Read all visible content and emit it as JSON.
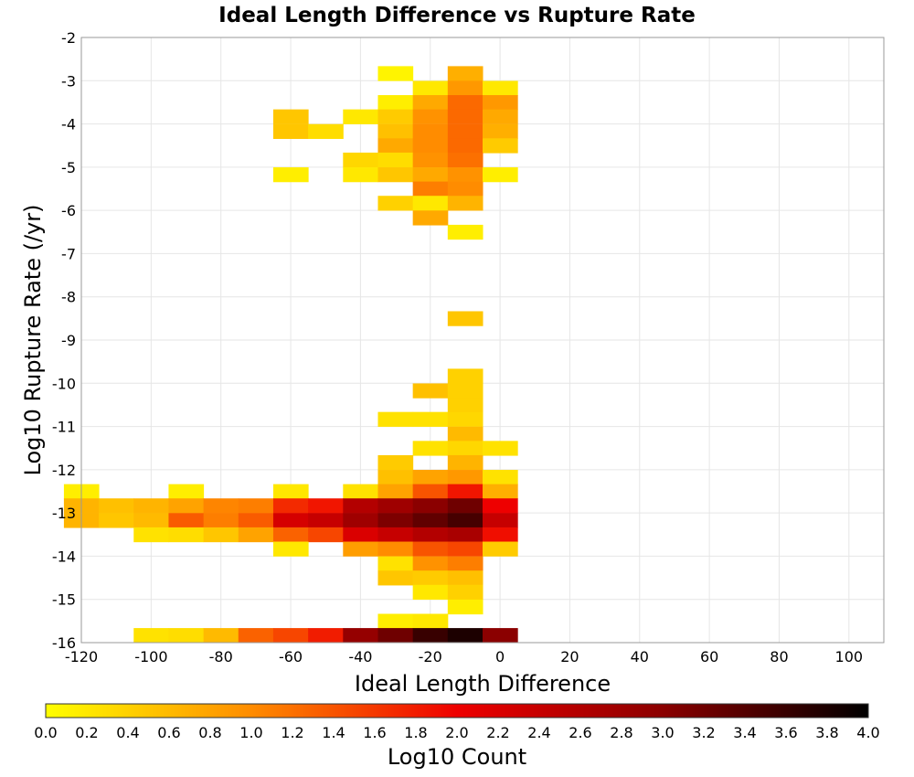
{
  "chart_data": {
    "type": "heatmap",
    "title": "Ideal Length Difference vs Rupture Rate",
    "xlabel": "Ideal Length Difference",
    "ylabel": "Log10 Rupture Rate (/yr)",
    "xlim": [
      -120,
      110
    ],
    "ylim": [
      -16,
      -2
    ],
    "xticks": [
      -120,
      -100,
      -80,
      -60,
      -40,
      -20,
      0,
      20,
      40,
      60,
      80,
      100
    ],
    "yticks": [
      -16,
      -15,
      -14,
      -13,
      -12,
      -11,
      -10,
      -9,
      -8,
      -7,
      -6,
      -5,
      -4,
      -3,
      -2
    ],
    "x_bin_width": 10,
    "y_bin_height": 0.333,
    "grid": true,
    "colorbar": {
      "label": "Log10 Count",
      "range": [
        0,
        4
      ],
      "ticks": [
        "0.0",
        "0.2",
        "0.4",
        "0.6",
        "0.8",
        "1.0",
        "1.2",
        "1.4",
        "1.6",
        "1.8",
        "2.0",
        "2.2",
        "2.4",
        "2.6",
        "2.8",
        "3.0",
        "3.2",
        "3.4",
        "3.6",
        "3.8",
        "4.0"
      ],
      "colors": [
        "#ffff00",
        "#ff8c00",
        "#ee0000",
        "#8b0000",
        "#000000"
      ]
    },
    "cells": [
      {
        "x": -30,
        "y": -2.83,
        "v": 0.1
      },
      {
        "x": -20,
        "y": -3.17,
        "v": 0.2
      },
      {
        "x": -10,
        "y": -2.83,
        "v": 0.7
      },
      {
        "x": -10,
        "y": -3.17,
        "v": 0.9
      },
      {
        "x": 0,
        "y": -3.17,
        "v": 0.2
      },
      {
        "x": -30,
        "y": -3.5,
        "v": 0.15
      },
      {
        "x": -20,
        "y": -3.5,
        "v": 0.75
      },
      {
        "x": -10,
        "y": -3.5,
        "v": 1.25
      },
      {
        "x": 0,
        "y": -3.5,
        "v": 0.9
      },
      {
        "x": -60,
        "y": -3.83,
        "v": 0.5
      },
      {
        "x": -60,
        "y": -4.17,
        "v": 0.5
      },
      {
        "x": -40,
        "y": -3.83,
        "v": 0.2
      },
      {
        "x": -30,
        "y": -3.83,
        "v": 0.45
      },
      {
        "x": -20,
        "y": -3.83,
        "v": 0.95
      },
      {
        "x": -10,
        "y": -3.83,
        "v": 1.25
      },
      {
        "x": 0,
        "y": -3.83,
        "v": 0.75
      },
      {
        "x": -50,
        "y": -4.17,
        "v": 0.3
      },
      {
        "x": -30,
        "y": -4.17,
        "v": 0.55
      },
      {
        "x": -20,
        "y": -4.17,
        "v": 1.0
      },
      {
        "x": -10,
        "y": -4.17,
        "v": 1.25
      },
      {
        "x": 0,
        "y": -4.17,
        "v": 0.7
      },
      {
        "x": -30,
        "y": -4.5,
        "v": 0.75
      },
      {
        "x": -20,
        "y": -4.5,
        "v": 1.0
      },
      {
        "x": -10,
        "y": -4.5,
        "v": 1.25
      },
      {
        "x": 0,
        "y": -4.5,
        "v": 0.45
      },
      {
        "x": -40,
        "y": -4.83,
        "v": 0.35
      },
      {
        "x": -30,
        "y": -4.83,
        "v": 0.3
      },
      {
        "x": -20,
        "y": -4.83,
        "v": 0.95
      },
      {
        "x": -10,
        "y": -4.83,
        "v": 1.2
      },
      {
        "x": -60,
        "y": -5.17,
        "v": 0.15
      },
      {
        "x": -40,
        "y": -5.17,
        "v": 0.2
      },
      {
        "x": -30,
        "y": -5.17,
        "v": 0.5
      },
      {
        "x": -20,
        "y": -5.17,
        "v": 0.75
      },
      {
        "x": -10,
        "y": -5.17,
        "v": 0.95
      },
      {
        "x": 0,
        "y": -5.17,
        "v": 0.15
      },
      {
        "x": -20,
        "y": -5.5,
        "v": 1.1
      },
      {
        "x": -10,
        "y": -5.5,
        "v": 1.0
      },
      {
        "x": -30,
        "y": -5.83,
        "v": 0.4
      },
      {
        "x": -20,
        "y": -5.83,
        "v": 0.2
      },
      {
        "x": -10,
        "y": -5.83,
        "v": 0.65
      },
      {
        "x": -20,
        "y": -6.17,
        "v": 0.75
      },
      {
        "x": -10,
        "y": -6.5,
        "v": 0.15
      },
      {
        "x": -10,
        "y": -8.5,
        "v": 0.5
      },
      {
        "x": -10,
        "y": -9.83,
        "v": 0.4
      },
      {
        "x": -20,
        "y": -10.17,
        "v": 0.55
      },
      {
        "x": -10,
        "y": -10.17,
        "v": 0.4
      },
      {
        "x": -10,
        "y": -10.5,
        "v": 0.4
      },
      {
        "x": -30,
        "y": -10.83,
        "v": 0.25
      },
      {
        "x": -20,
        "y": -10.83,
        "v": 0.25
      },
      {
        "x": -10,
        "y": -10.83,
        "v": 0.35
      },
      {
        "x": -10,
        "y": -11.17,
        "v": 0.6
      },
      {
        "x": -20,
        "y": -11.5,
        "v": 0.25
      },
      {
        "x": -10,
        "y": -11.5,
        "v": 0.35
      },
      {
        "x": 0,
        "y": -11.5,
        "v": 0.25
      },
      {
        "x": -30,
        "y": -11.83,
        "v": 0.45
      },
      {
        "x": -10,
        "y": -11.83,
        "v": 0.65
      },
      {
        "x": -30,
        "y": -12.17,
        "v": 0.55
      },
      {
        "x": -20,
        "y": -12.17,
        "v": 0.8
      },
      {
        "x": -10,
        "y": -12.17,
        "v": 0.9
      },
      {
        "x": 0,
        "y": -12.17,
        "v": 0.25
      },
      {
        "x": -120,
        "y": -12.5,
        "v": 0.15
      },
      {
        "x": -90,
        "y": -12.5,
        "v": 0.15
      },
      {
        "x": -60,
        "y": -12.5,
        "v": 0.2
      },
      {
        "x": -40,
        "y": -12.5,
        "v": 0.25
      },
      {
        "x": -30,
        "y": -12.5,
        "v": 0.8
      },
      {
        "x": -20,
        "y": -12.5,
        "v": 1.4
      },
      {
        "x": -10,
        "y": -12.5,
        "v": 1.85
      },
      {
        "x": 0,
        "y": -12.5,
        "v": 0.7
      },
      {
        "x": -120,
        "y": -12.83,
        "v": 0.65
      },
      {
        "x": -110,
        "y": -12.83,
        "v": 0.55
      },
      {
        "x": -100,
        "y": -12.83,
        "v": 0.65
      },
      {
        "x": -90,
        "y": -12.83,
        "v": 0.8
      },
      {
        "x": -80,
        "y": -12.83,
        "v": 1.05
      },
      {
        "x": -70,
        "y": -12.83,
        "v": 1.1
      },
      {
        "x": -60,
        "y": -12.83,
        "v": 1.7
      },
      {
        "x": -50,
        "y": -12.83,
        "v": 1.85
      },
      {
        "x": -40,
        "y": -12.83,
        "v": 2.6
      },
      {
        "x": -30,
        "y": -12.83,
        "v": 2.8
      },
      {
        "x": -20,
        "y": -12.83,
        "v": 3.0
      },
      {
        "x": -10,
        "y": -12.83,
        "v": 3.2
      },
      {
        "x": 0,
        "y": -12.83,
        "v": 2.0
      },
      {
        "x": -120,
        "y": -13.17,
        "v": 0.65
      },
      {
        "x": -110,
        "y": -13.17,
        "v": 0.5
      },
      {
        "x": -100,
        "y": -13.17,
        "v": 0.6
      },
      {
        "x": -90,
        "y": -13.17,
        "v": 1.35
      },
      {
        "x": -80,
        "y": -13.17,
        "v": 1.1
      },
      {
        "x": -70,
        "y": -13.17,
        "v": 1.35
      },
      {
        "x": -60,
        "y": -13.17,
        "v": 2.25
      },
      {
        "x": -50,
        "y": -13.17,
        "v": 2.4
      },
      {
        "x": -40,
        "y": -13.17,
        "v": 2.8
      },
      {
        "x": -30,
        "y": -13.17,
        "v": 3.1
      },
      {
        "x": -20,
        "y": -13.17,
        "v": 3.3
      },
      {
        "x": -10,
        "y": -13.17,
        "v": 3.5
      },
      {
        "x": 0,
        "y": -13.17,
        "v": 2.4
      },
      {
        "x": -100,
        "y": -13.5,
        "v": 0.25
      },
      {
        "x": -90,
        "y": -13.5,
        "v": 0.3
      },
      {
        "x": -80,
        "y": -13.5,
        "v": 0.5
      },
      {
        "x": -70,
        "y": -13.5,
        "v": 0.8
      },
      {
        "x": -60,
        "y": -13.5,
        "v": 1.3
      },
      {
        "x": -50,
        "y": -13.5,
        "v": 1.5
      },
      {
        "x": -40,
        "y": -13.5,
        "v": 2.2
      },
      {
        "x": -30,
        "y": -13.5,
        "v": 2.4
      },
      {
        "x": -20,
        "y": -13.5,
        "v": 2.6
      },
      {
        "x": -10,
        "y": -13.5,
        "v": 2.7
      },
      {
        "x": 0,
        "y": -13.5,
        "v": 1.9
      },
      {
        "x": -60,
        "y": -13.83,
        "v": 0.2
      },
      {
        "x": -40,
        "y": -13.83,
        "v": 0.85
      },
      {
        "x": -30,
        "y": -13.83,
        "v": 1.0
      },
      {
        "x": -20,
        "y": -13.83,
        "v": 1.4
      },
      {
        "x": -10,
        "y": -13.83,
        "v": 1.5
      },
      {
        "x": 0,
        "y": -13.83,
        "v": 0.45
      },
      {
        "x": -30,
        "y": -14.17,
        "v": 0.25
      },
      {
        "x": -20,
        "y": -14.17,
        "v": 0.95
      },
      {
        "x": -10,
        "y": -14.17,
        "v": 1.1
      },
      {
        "x": -30,
        "y": -14.5,
        "v": 0.5
      },
      {
        "x": -20,
        "y": -14.5,
        "v": 0.45
      },
      {
        "x": -10,
        "y": -14.5,
        "v": 0.55
      },
      {
        "x": -20,
        "y": -14.83,
        "v": 0.2
      },
      {
        "x": -10,
        "y": -14.83,
        "v": 0.4
      },
      {
        "x": -10,
        "y": -15.17,
        "v": 0.15
      },
      {
        "x": -30,
        "y": -15.5,
        "v": 0.15
      },
      {
        "x": -20,
        "y": -15.5,
        "v": 0.2
      },
      {
        "x": -100,
        "y": -15.83,
        "v": 0.25
      },
      {
        "x": -90,
        "y": -15.83,
        "v": 0.3
      },
      {
        "x": -80,
        "y": -15.83,
        "v": 0.6
      },
      {
        "x": -70,
        "y": -15.83,
        "v": 1.3
      },
      {
        "x": -60,
        "y": -15.83,
        "v": 1.5
      },
      {
        "x": -50,
        "y": -15.83,
        "v": 1.8
      },
      {
        "x": -40,
        "y": -15.83,
        "v": 2.9
      },
      {
        "x": -30,
        "y": -15.83,
        "v": 3.2
      },
      {
        "x": -20,
        "y": -15.83,
        "v": 3.6
      },
      {
        "x": -10,
        "y": -15.83,
        "v": 3.8
      },
      {
        "x": 0,
        "y": -15.83,
        "v": 3.0
      }
    ]
  }
}
